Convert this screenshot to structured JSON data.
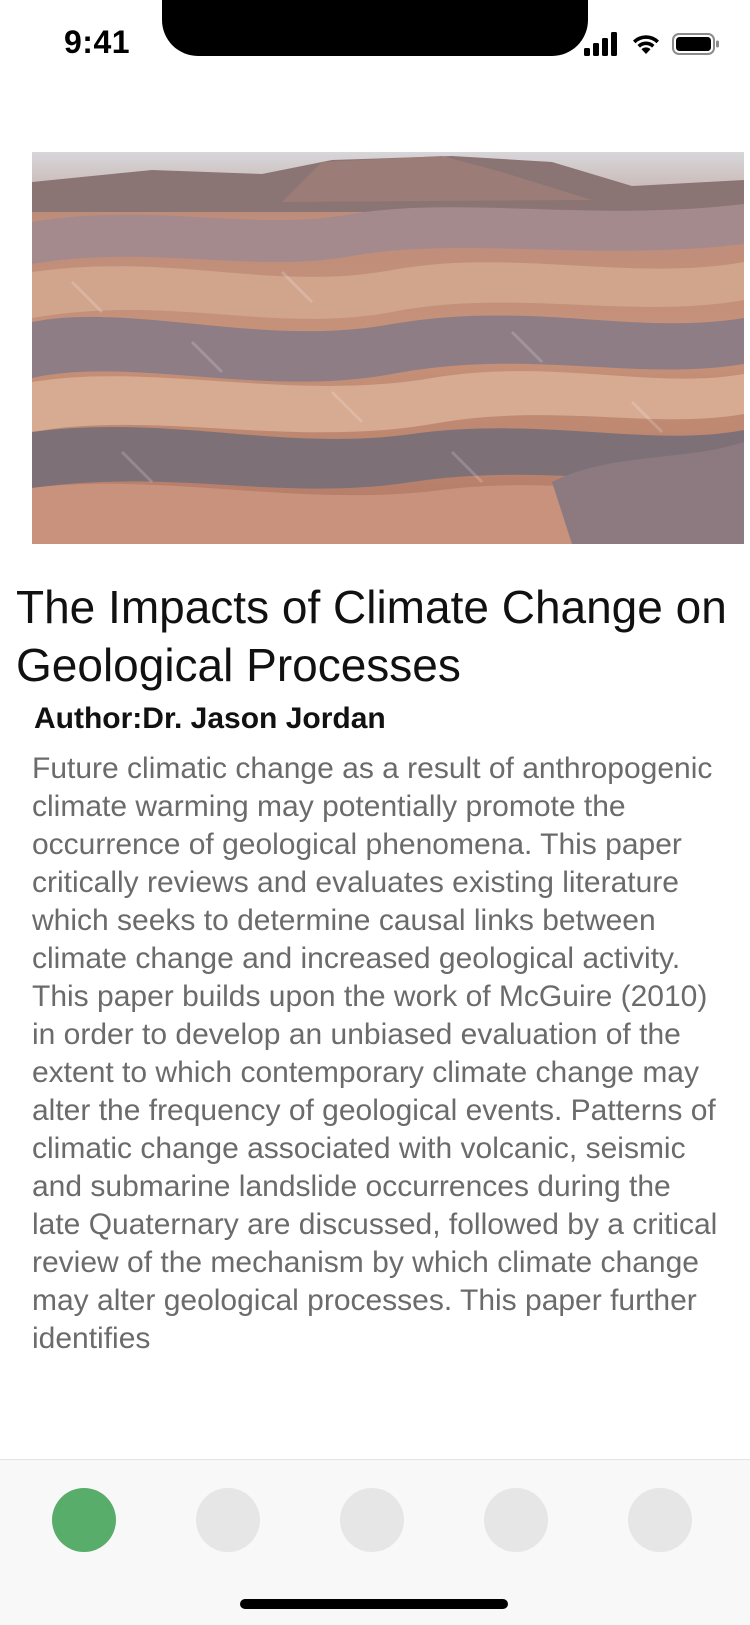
{
  "status_bar": {
    "time": "9:41",
    "icons": [
      "cellular-signal-icon",
      "wifi-icon",
      "battery-icon"
    ]
  },
  "hero_image": {
    "subject": "eroded badlands landscape"
  },
  "article": {
    "title": "The Impacts of Climate Change on Geological Processes",
    "author": "Author:Dr. Jason Jordan",
    "abstract": "Future climatic change as a result of anthropogenic climate warming may potentially promote the occurrence of geological phenomena. This paper critically reviews and evaluates existing literature which seeks to determine causal links between climate change and increased geological activity. This paper builds upon the work of McGuire (2010) in order to develop an unbiased evaluation of the extent to which contemporary climate change may alter the frequency of geological events. Patterns of climatic change associated with volcanic, seismic and submarine landslide occurrences during the late Quaternary are discussed, followed by a critical review of the mechanism by which climate change may alter geological processes. This paper further identifies"
  },
  "tab_bar": {
    "active_index": 0,
    "tabs": [
      "tab-1",
      "tab-2",
      "tab-3",
      "tab-4",
      "tab-5"
    ]
  },
  "colors": {
    "accent": "#58ad6b",
    "inactive_tab": "#e6e6e6",
    "body_text": "#6b6b6b"
  }
}
